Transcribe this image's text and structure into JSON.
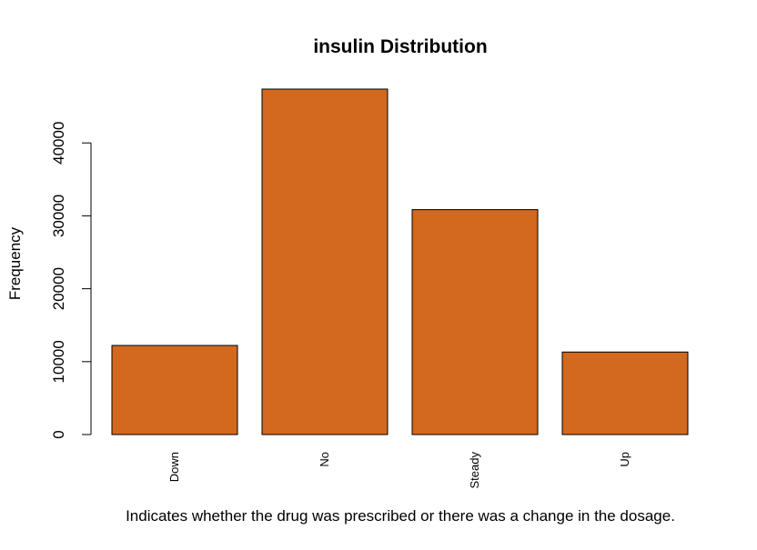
{
  "chart_data": {
    "type": "bar",
    "title": "insulin Distribution",
    "xlabel": "Indicates whether the drug was prescribed or there was a change in the dosage.",
    "ylabel": "Frequency",
    "categories": [
      "Down",
      "No",
      "Steady",
      "Up"
    ],
    "values": [
      12218,
      47383,
      30849,
      11316
    ],
    "ylim": [
      0,
      47383
    ],
    "yticks": [
      0,
      10000,
      20000,
      30000,
      40000
    ],
    "ytick_labels": [
      "0",
      "10000",
      "20000",
      "30000",
      "40000"
    ],
    "bar_color": "#d2691e",
    "bar_edge_color": "#000000",
    "grid": false,
    "legend": "none"
  }
}
